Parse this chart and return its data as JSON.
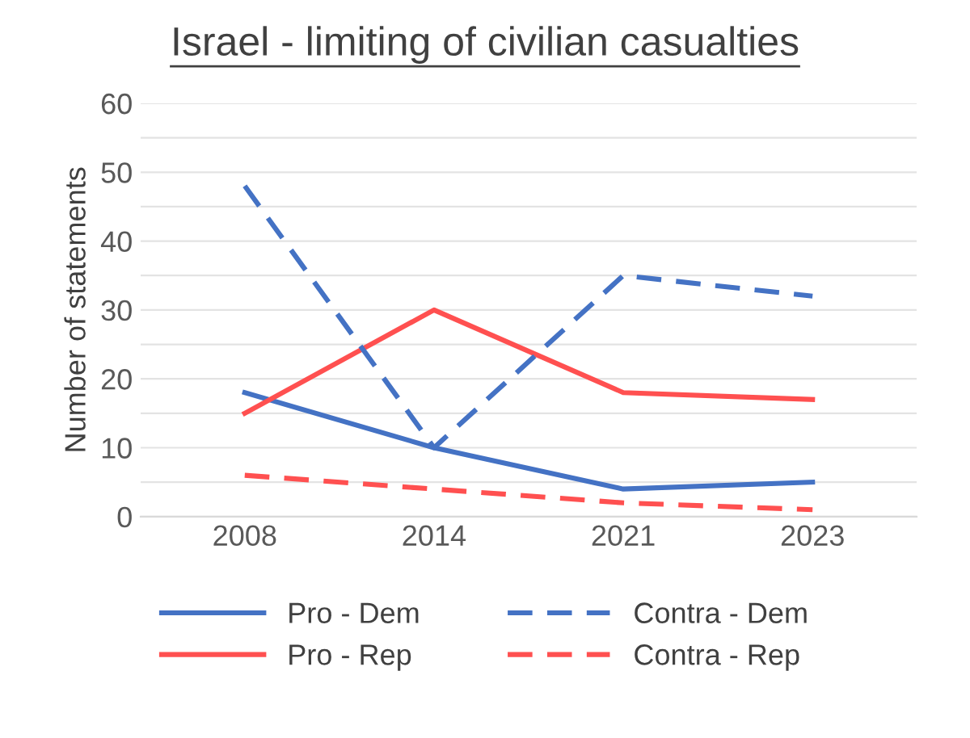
{
  "chart_data": {
    "type": "line",
    "title": "Israel - limiting of civilian casualties",
    "ylabel": "Number of statements",
    "categories": [
      "2008",
      "2014",
      "2021",
      "2023"
    ],
    "series": [
      {
        "name": "Pro - Dem",
        "color": "#4472c4",
        "values": [
          18,
          10,
          4,
          5
        ],
        "line_style": "solid"
      },
      {
        "name": "Pro - Rep",
        "color": "#ff5050",
        "values": [
          15,
          30,
          18,
          17
        ],
        "line_style": "solid"
      },
      {
        "name": "Contra - Dem",
        "color": "#4472c4",
        "values": [
          48,
          10,
          35,
          32
        ],
        "line_style": "dashed"
      },
      {
        "name": "Contra - Rep",
        "color": "#ff5050",
        "values": [
          6,
          4,
          2,
          1
        ],
        "line_style": "dashed"
      }
    ],
    "ylim": [
      0,
      60
    ],
    "yticks": [
      0,
      {
        "value": 5,
        "label": null
      },
      10,
      {
        "value": 15,
        "label": null
      },
      20,
      {
        "value": 25,
        "label": null
      },
      30,
      {
        "value": 35,
        "label": null
      },
      40,
      {
        "value": 45,
        "label": null
      },
      50,
      {
        "value": 55,
        "label": null
      },
      60
    ],
    "grid": "y",
    "legend": "bottom",
    "marker": "none"
  }
}
